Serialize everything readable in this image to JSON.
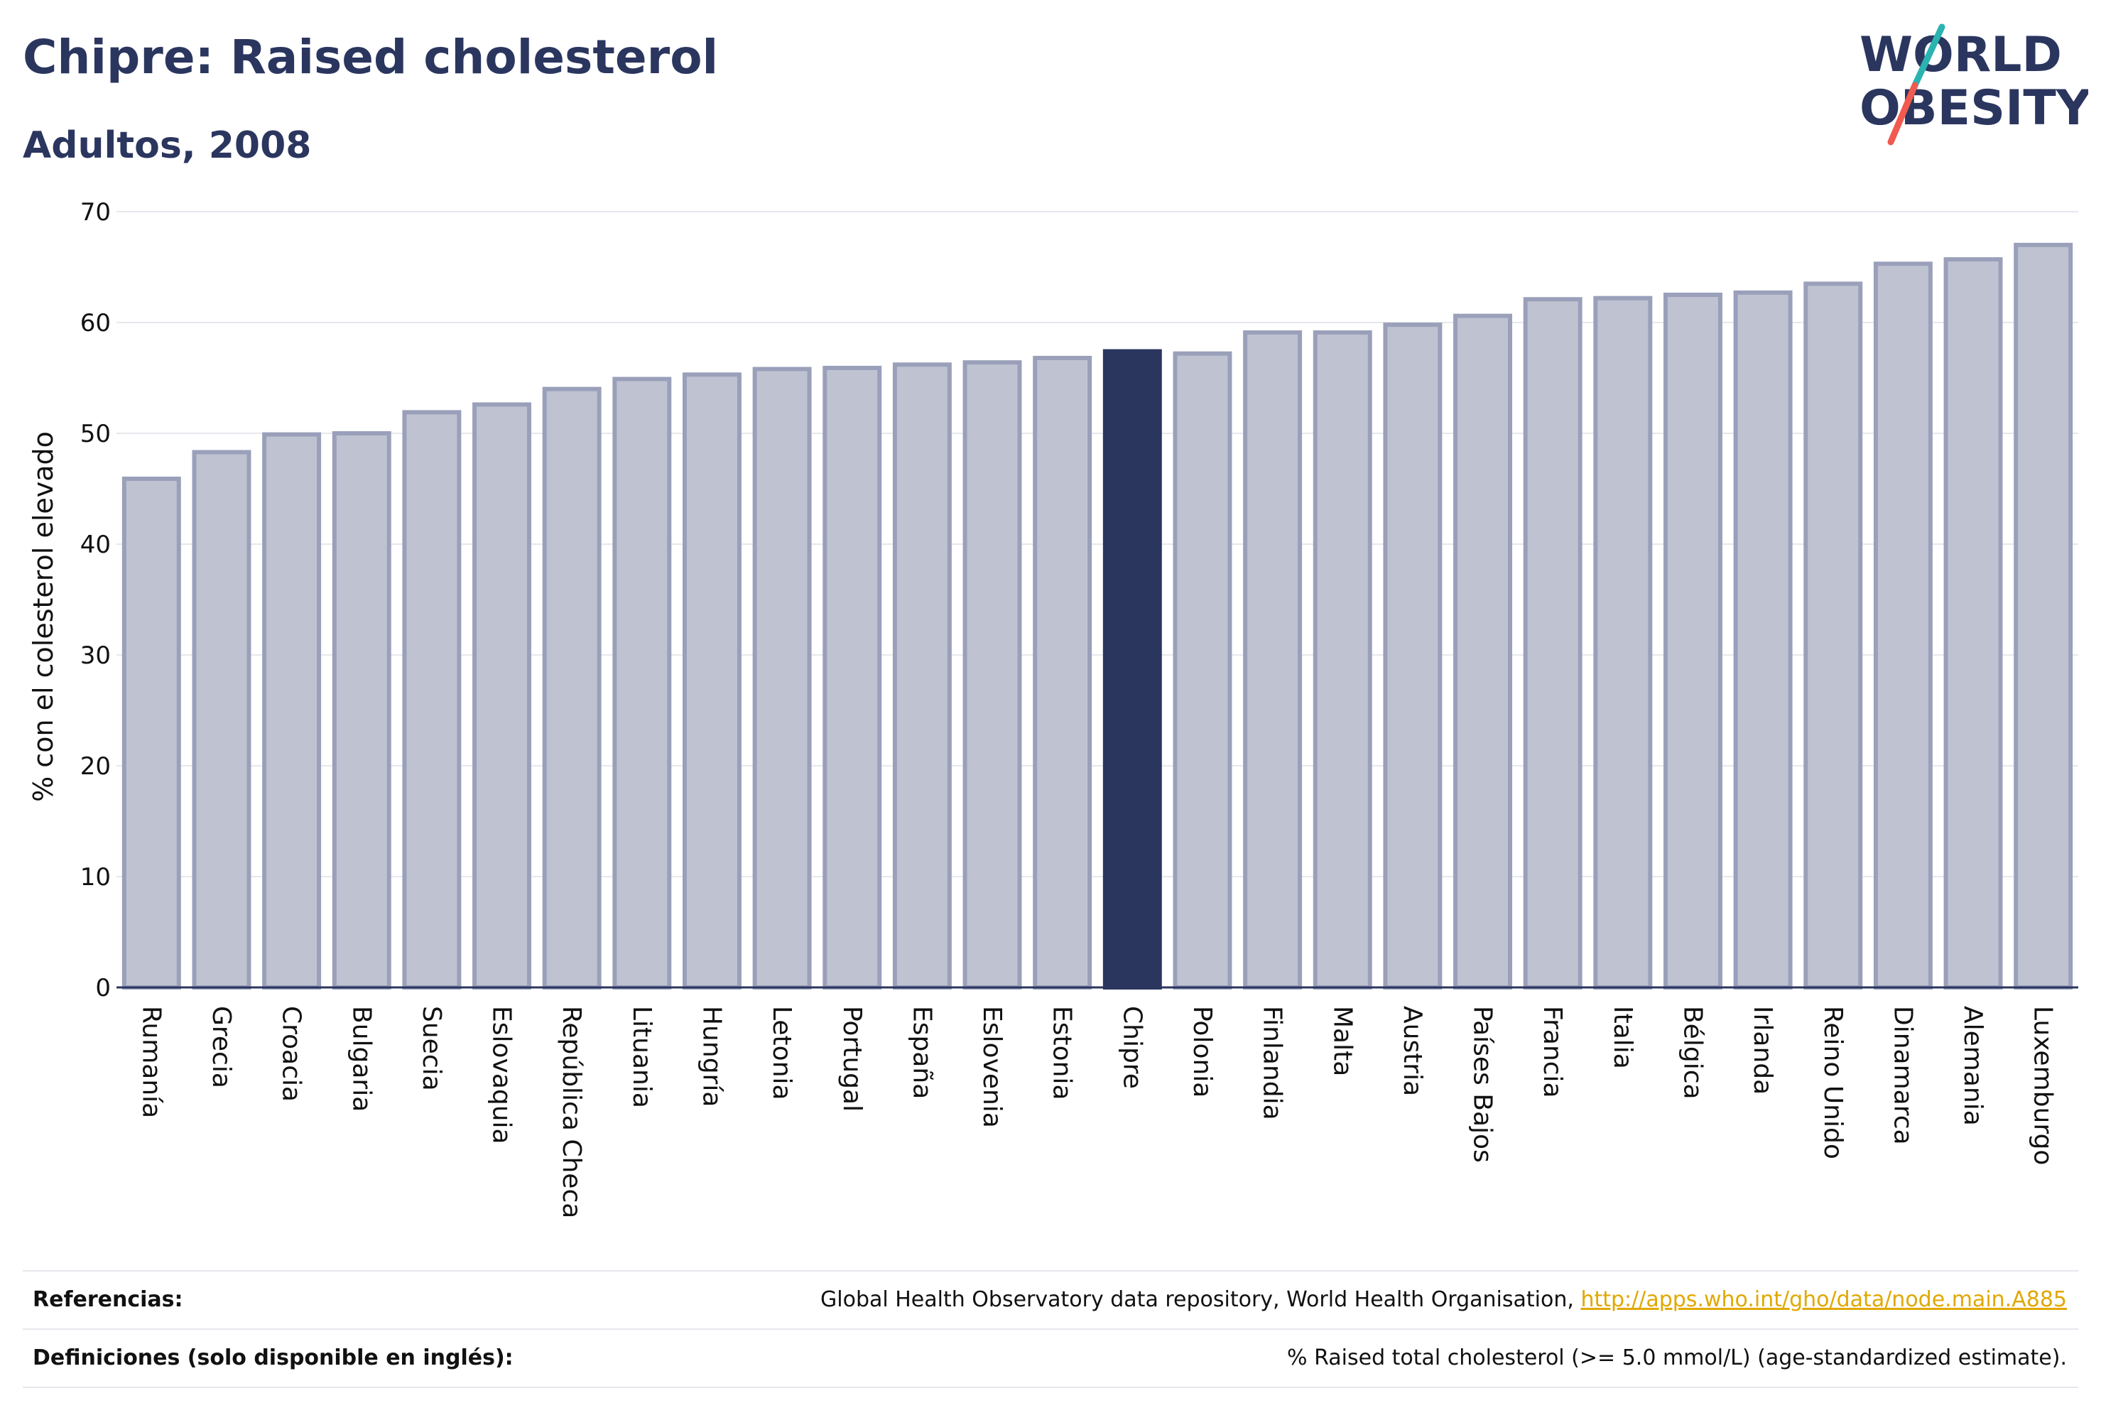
{
  "header": {
    "title": "Chipre: Raised cholesterol",
    "subtitle": "Adultos, 2008"
  },
  "logo": {
    "line1": "WORLD",
    "line2": "OBESITY",
    "accent_colors": [
      "#2ab3b1",
      "#f05a4f"
    ]
  },
  "colors": {
    "bar_fill": "#bfc3d1",
    "bar_stroke": "#9aa0ba",
    "highlight_fill": "#2b365f",
    "text": "#2b365f",
    "grid": "#e6e8ee",
    "link": "#e0a800"
  },
  "chart_data": {
    "type": "bar",
    "ylabel": "% con el colesterol elevado",
    "ylim": [
      0,
      70
    ],
    "yticks": [
      0,
      10,
      20,
      30,
      40,
      50,
      60,
      70
    ],
    "grid": true,
    "highlight": "Chipre",
    "categories": [
      "Rumanía",
      "Grecia",
      "Croacia",
      "Bulgaria",
      "Suecia",
      "Eslovaquia",
      "República Checa",
      "Lituania",
      "Hungría",
      "Letonia",
      "Portugal",
      "España",
      "Eslovenia",
      "Estonia",
      "Chipre",
      "Polonia",
      "Finlandia",
      "Malta",
      "Austria",
      "Países Bajos",
      "Francia",
      "Italia",
      "Bélgica",
      "Irlanda",
      "Reino Unido",
      "Dinamarca",
      "Alemania",
      "Luxemburgo"
    ],
    "values": [
      45.9,
      48.3,
      49.9,
      50.0,
      51.9,
      52.6,
      54.0,
      54.9,
      55.3,
      55.8,
      55.9,
      56.2,
      56.4,
      56.8,
      57.4,
      57.2,
      59.1,
      59.1,
      59.8,
      60.6,
      62.1,
      62.2,
      62.5,
      62.7,
      63.5,
      65.3,
      65.7,
      67.0
    ]
  },
  "footer": {
    "references_label": "Referencias:",
    "references_text": "Global Health Observatory data repository, World Health Organisation, ",
    "references_link": "http://apps.who.int/gho/data/node.main.A885",
    "definitions_label": "Definiciones (solo disponible en inglés):",
    "definitions_text": "% Raised total cholesterol (>= 5.0 mmol/L) (age-standardized estimate)."
  }
}
